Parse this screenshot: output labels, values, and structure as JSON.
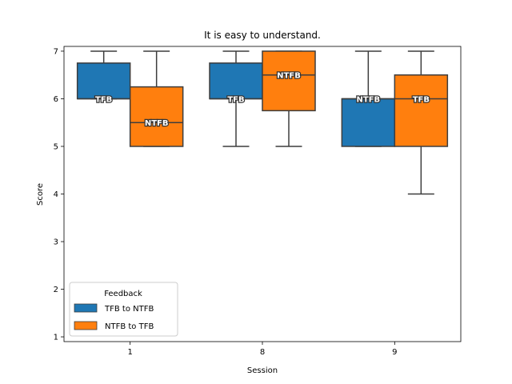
{
  "chart_data": {
    "type": "box",
    "title": "It is easy to understand.",
    "xlabel": "Session",
    "ylabel": "Score",
    "categories": [
      "1",
      "8",
      "9"
    ],
    "ylim": [
      0.9,
      7.1
    ],
    "yticks": [
      1,
      2,
      3,
      4,
      5,
      6,
      7
    ],
    "grid": false,
    "legend": {
      "title": "Feedback",
      "placement": "lower-left",
      "entries": [
        "TFB to NTFB",
        "NTFB to TFB"
      ]
    },
    "series": [
      {
        "name": "TFB to NTFB",
        "color": "#1f77b4",
        "boxes": [
          {
            "category": "1",
            "whisker_low": 6,
            "q1": 6,
            "median": 6,
            "q3": 6.75,
            "whisker_high": 7,
            "label": "TFB"
          },
          {
            "category": "8",
            "whisker_low": 5,
            "q1": 6,
            "median": 6,
            "q3": 6.75,
            "whisker_high": 7,
            "label": "TFB"
          },
          {
            "category": "9",
            "whisker_low": 5,
            "q1": 5,
            "median": 6,
            "q3": 6,
            "whisker_high": 7,
            "label": "NTFB"
          }
        ]
      },
      {
        "name": "NTFB to TFB",
        "color": "#ff7f0e",
        "boxes": [
          {
            "category": "1",
            "whisker_low": 5,
            "q1": 5,
            "median": 5.5,
            "q3": 6.25,
            "whisker_high": 7,
            "label": "NTFB"
          },
          {
            "category": "8",
            "whisker_low": 5,
            "q1": 5.75,
            "median": 6.5,
            "q3": 7,
            "whisker_high": 7,
            "label": "NTFB"
          },
          {
            "category": "9",
            "whisker_low": 4,
            "q1": 5,
            "median": 6,
            "q3": 6.5,
            "whisker_high": 7,
            "label": "TFB"
          }
        ]
      }
    ]
  }
}
